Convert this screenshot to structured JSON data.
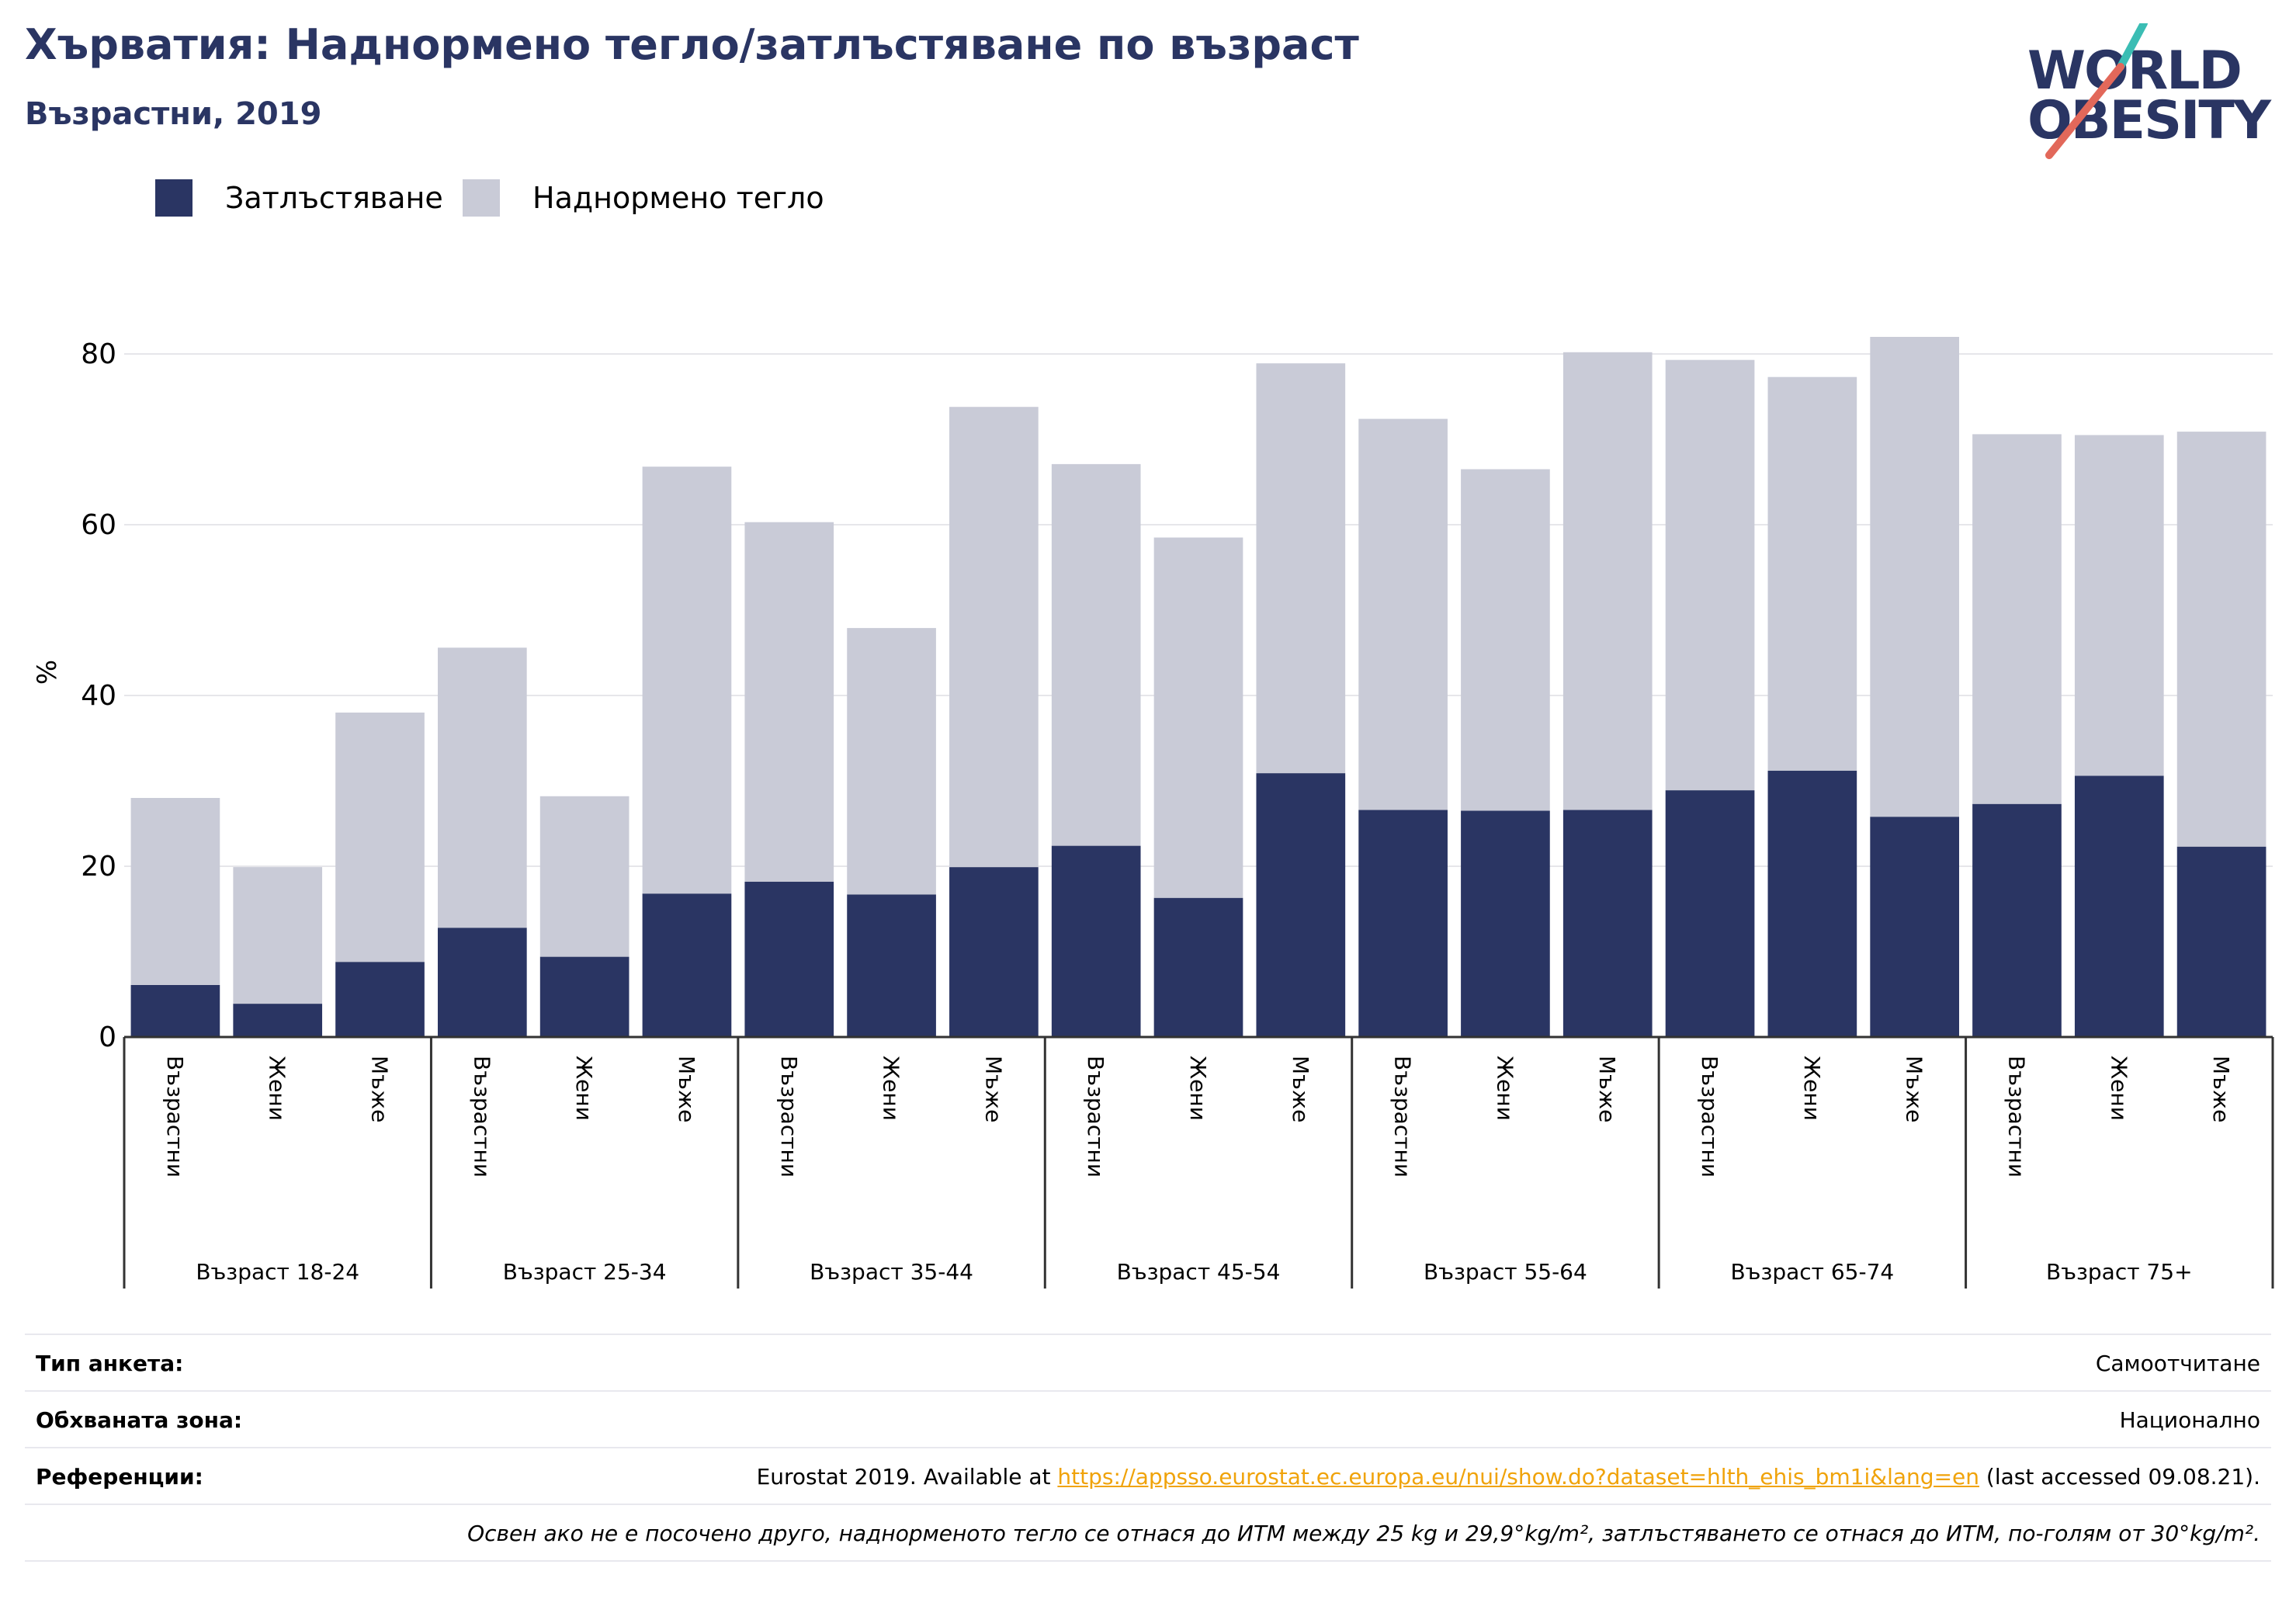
{
  "header": {
    "title": "Хърватия: Наднормено тегло/затлъстяване по възраст",
    "subtitle": "Възрастни, 2019"
  },
  "logo": {
    "line1": "WORLD",
    "line2": "OBESITY",
    "colors": {
      "text": "#2a3563",
      "slash_teal": "#3bbdb4",
      "slash_red": "#e2685a"
    }
  },
  "colors": {
    "obesity": "#2a3563",
    "overweight": "#c9cbd7",
    "grid": "#e6e6ea",
    "axis": "#333333"
  },
  "chart_data": {
    "type": "bar",
    "stacked": true,
    "title": "Хърватия: Наднормено тегло/затлъстяване по възраст",
    "subtitle": "Възрастни, 2019",
    "ylabel": "%",
    "xlabel": "",
    "ylim": [
      0,
      90
    ],
    "yticks": [
      0,
      20,
      40,
      60,
      80
    ],
    "grid": true,
    "legend_position": "top-left",
    "groups": [
      "Възраст 18-24",
      "Възраст 25-34",
      "Възраст 35-44",
      "Възраст 45-54",
      "Възраст 55-64",
      "Възраст 65-74",
      "Възраст 75+"
    ],
    "subcategories": [
      "Възрастни",
      "Жени",
      "Мъже"
    ],
    "series": [
      {
        "name": "Затлъстяване",
        "values": [
          6.1,
          3.9,
          8.8,
          12.8,
          9.4,
          16.8,
          18.2,
          16.7,
          19.9,
          22.4,
          16.3,
          30.9,
          26.6,
          26.5,
          26.6,
          28.9,
          31.2,
          25.8,
          27.3,
          30.6,
          22.3
        ]
      },
      {
        "name": "Наднормено тегло",
        "values": [
          21.9,
          16.0,
          29.2,
          32.8,
          18.8,
          50.0,
          42.1,
          31.2,
          53.9,
          44.7,
          42.2,
          48.0,
          45.8,
          40.0,
          53.6,
          50.4,
          46.1,
          56.2,
          43.3,
          39.9,
          48.6
        ]
      }
    ],
    "totals": [
      28.0,
      19.9,
      38.0,
      45.6,
      28.2,
      66.8,
      60.3,
      47.9,
      73.8,
      67.1,
      58.5,
      78.9,
      72.4,
      66.5,
      80.2,
      79.3,
      77.3,
      82.0,
      70.6,
      70.5,
      70.9
    ]
  },
  "info": {
    "survey_type_label": "Тип анкета:",
    "survey_type_value": "Самоотчитане",
    "area_label": "Обхваната зона:",
    "area_value": "Национално",
    "refs_label": "Референции:",
    "refs_prefix": "Eurostat 2019. Available at ",
    "refs_link": "https://appsso.eurostat.ec.europa.eu/nui/show.do?dataset=hlth_ehis_bm1i&lang=en",
    "refs_suffix": " (last accessed 09.08.21).",
    "note": "Освен ако не е посочено друго, наднорменото тегло се отнася до ИТМ между 25 kg и 29,9°kg/m², затлъстяването се отнася до ИТМ, по-голям от 30°kg/m²."
  }
}
